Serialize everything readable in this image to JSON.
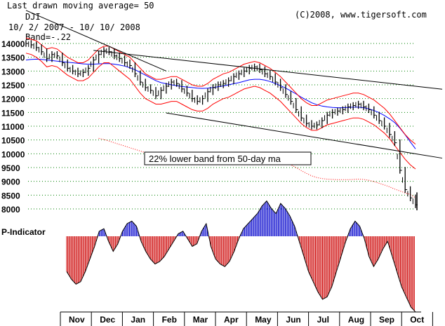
{
  "chart_data": [
    {
      "type": "line",
      "header": {
        "note": "Last drawn moving average= 50",
        "symbol": "DJI",
        "date_range": "10/ 2/ 2007 - 10/ 10/ 2008",
        "band": "Band=-.22",
        "copyright": "(C)2008, www.tigersoft.com"
      },
      "annotation": "22% lower band from 50-day ma",
      "y_ticks": [
        "14000",
        "13500",
        "13000",
        "12500",
        "12000",
        "11500",
        "11000",
        "10500",
        "10000",
        "9500",
        "9000",
        "8500",
        "8000"
      ],
      "ylim": [
        8000,
        14000
      ],
      "grid": true,
      "x_ticks": [
        "Nov",
        "Dec",
        "Jan",
        "Feb",
        "Mar",
        "Apr",
        "May",
        "Jun",
        "Jul",
        "Aug",
        "Sep",
        "Oct"
      ],
      "series": [
        {
          "key": "price",
          "color": "#000000",
          "values": [
            14000,
            13950,
            13850,
            13700,
            13450,
            13600,
            13550,
            13300,
            13100,
            13000,
            12900,
            12950,
            13100,
            13400,
            13600,
            13750,
            13700,
            13550,
            13450,
            13300,
            13200,
            12900,
            12600,
            12400,
            12300,
            12100,
            12300,
            12450,
            12600,
            12550,
            12350,
            12200,
            12000,
            11900,
            12000,
            12250,
            12400,
            12500,
            12550,
            12650,
            12800,
            12900,
            13000,
            13100,
            13150,
            13050,
            12900,
            12800,
            12600,
            12400,
            12150,
            11900,
            11600,
            11300,
            11100,
            11000,
            11050,
            11200,
            11400,
            11500,
            11550,
            11600,
            11700,
            11750,
            11800,
            11700,
            11600,
            11400,
            11200,
            11000,
            10700,
            10400,
            9400,
            8700,
            8400,
            8150
          ]
        },
        {
          "key": "ma50",
          "color": "#0000ff",
          "values": [
            13400,
            13420,
            13430,
            13420,
            13400,
            13380,
            13360,
            13340,
            13320,
            13300,
            13280,
            13260,
            13250,
            13250,
            13260,
            13270,
            13270,
            13250,
            13220,
            13180,
            13120,
            13050,
            12950,
            12850,
            12750,
            12650,
            12580,
            12540,
            12500,
            12470,
            12440,
            12420,
            12400,
            12380,
            12370,
            12380,
            12400,
            12430,
            12460,
            12500,
            12540,
            12580,
            12630,
            12680,
            12700,
            12700,
            12670,
            12620,
            12550,
            12470,
            12380,
            12280,
            12170,
            12050,
            11950,
            11850,
            11780,
            11730,
            11700,
            11680,
            11670,
            11670,
            11680,
            11690,
            11690,
            11670,
            11630,
            11570,
            11490,
            11390,
            11270,
            11130,
            10930,
            10690,
            10430,
            10180
          ]
        },
        {
          "key": "upper_band",
          "color": "#ff0000",
          "values": [
            14200,
            14150,
            14100,
            13950,
            13800,
            13850,
            13800,
            13650,
            13500,
            13400,
            13300,
            13300,
            13400,
            13600,
            13800,
            13900,
            13900,
            13800,
            13700,
            13600,
            13500,
            13300,
            13100,
            12900,
            12800,
            12700,
            12700,
            12750,
            12800,
            12800,
            12700,
            12600,
            12500,
            12450,
            12450,
            12550,
            12700,
            12800,
            12900,
            12950,
            13050,
            13150,
            13250,
            13300,
            13350,
            13300,
            13200,
            13100,
            12950,
            12800,
            12600,
            12400,
            12200,
            12000,
            11850,
            11750,
            11750,
            11850,
            11950,
            12000,
            12050,
            12100,
            12150,
            12200,
            12200,
            12150,
            12050,
            11950,
            11800,
            11650,
            11450,
            11200,
            10950,
            10700,
            10500,
            10350
          ]
        },
        {
          "key": "lower_band",
          "color": "#ff0000",
          "values": [
            13650,
            13600,
            13500,
            13350,
            13150,
            13200,
            13150,
            13000,
            12850,
            12750,
            12650,
            12650,
            12750,
            12950,
            13150,
            13300,
            13300,
            13150,
            13000,
            12850,
            12700,
            12450,
            12200,
            12000,
            11900,
            11800,
            11800,
            11850,
            11900,
            11900,
            11800,
            11700,
            11600,
            11550,
            11550,
            11650,
            11800,
            11900,
            12000,
            12050,
            12150,
            12250,
            12350,
            12400,
            12450,
            12400,
            12300,
            12200,
            12050,
            11900,
            11700,
            11500,
            11300,
            11100,
            10950,
            10850,
            10850,
            10950,
            11050,
            11100,
            11150,
            11200,
            11250,
            11300,
            11300,
            11250,
            11150,
            11050,
            10900,
            10750,
            10550,
            10300,
            10050,
            9800,
            9600,
            9450
          ]
        },
        {
          "key": "lower_22pct_band",
          "color": "#ff0000",
          "values": [
            null,
            null,
            null,
            null,
            null,
            null,
            null,
            null,
            null,
            null,
            null,
            null,
            null,
            null,
            10560,
            10520,
            10460,
            10400,
            10340,
            10280,
            10220,
            10160,
            10100,
            10040,
            9980,
            9940,
            9900,
            9860,
            9820,
            9800,
            9780,
            9760,
            9740,
            9720,
            9700,
            9700,
            9700,
            9700,
            9710,
            9730,
            9760,
            9790,
            9820,
            9850,
            9880,
            9900,
            9890,
            9860,
            9810,
            9760,
            9690,
            9600,
            9500,
            9390,
            9290,
            9200,
            9140,
            9100,
            9080,
            9070,
            9060,
            9060,
            9060,
            9070,
            9080,
            9070,
            9040,
            8990,
            8930,
            8870,
            8800,
            8720,
            8650,
            8580,
            8520,
            8400
          ]
        }
      ],
      "channel_lines": [
        {
          "key": "upper_trend",
          "from": {
            "t": 13,
            "v": 13750
          },
          "to": {
            "t": 75,
            "v": 12450
          }
        },
        {
          "key": "lower_trend",
          "from": {
            "t": 27,
            "v": 11480
          },
          "to": {
            "t": 75,
            "v": 10000
          }
        },
        {
          "key": "steep_trend",
          "from": {
            "t": 0,
            "v": 15200
          },
          "to": {
            "t": 27,
            "v": 13000
          }
        }
      ]
    },
    {
      "type": "bar",
      "title": "P-Indicator",
      "positive_color": "#0000cc",
      "negative_color": "#cc0000",
      "values": [
        -70,
        -85,
        -95,
        -90,
        -70,
        -45,
        -20,
        10,
        15,
        -10,
        -30,
        -15,
        10,
        25,
        30,
        20,
        -10,
        -30,
        -45,
        -55,
        -50,
        -40,
        -25,
        -10,
        5,
        10,
        -5,
        -20,
        -15,
        10,
        25,
        -20,
        -45,
        -55,
        -60,
        -50,
        -30,
        -5,
        15,
        25,
        35,
        45,
        60,
        70,
        55,
        45,
        65,
        55,
        40,
        20,
        -10,
        -40,
        -70,
        -90,
        -110,
        -125,
        -120,
        -100,
        -70,
        -40,
        -10,
        15,
        30,
        20,
        -5,
        -40,
        -60,
        -45,
        -25,
        -10,
        -40,
        -70,
        -100,
        -120,
        -140,
        -150
      ]
    }
  ]
}
